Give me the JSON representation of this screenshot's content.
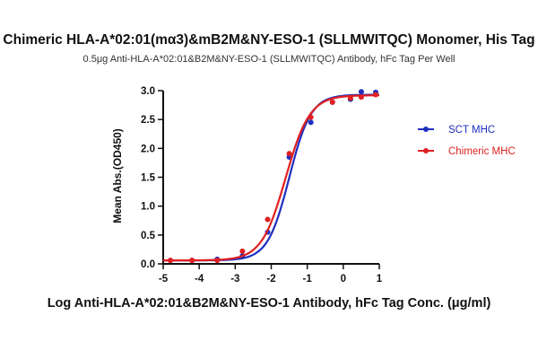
{
  "chart_data": {
    "type": "line",
    "title": "Chimeric HLA-A*02:01(mα3)&mB2M&NY-ESO-1 (SLLMWITQC) Monomer, His Tag",
    "subtitle": "0.5μg Anti-HLA-A*02:01&B2M&NY-ESO-1 (SLLMWITQC) Antibody, hFc Tag Per Well",
    "xlabel": "Log Anti-HLA-A*02:01&B2M&NY-ESO-1 Antibody, hFc Tag Conc. (μg/ml)",
    "ylabel": "Mean Abs.(OD450)",
    "xlim": [
      -5,
      1
    ],
    "ylim": [
      0,
      3.0
    ],
    "x_ticks": [
      "-5",
      "-4",
      "-3",
      "-2",
      "-1",
      "0",
      "1"
    ],
    "y_ticks": [
      "0.0",
      "0.5",
      "1.0",
      "1.5",
      "2.0",
      "2.5",
      "3.0"
    ],
    "grid": false,
    "legend_position": "right",
    "series": [
      {
        "name": "SCT MHC",
        "color": "#1f2fbf",
        "x": [
          -4.8,
          -4.2,
          -3.5,
          -2.8,
          -2.1,
          -1.5,
          -0.9,
          -0.3,
          0.2,
          0.5,
          0.9
        ],
        "y": [
          0.06,
          0.06,
          0.08,
          0.14,
          0.55,
          1.85,
          2.45,
          2.8,
          2.85,
          2.98,
          2.97
        ],
        "fit": {
          "bottom": 0.06,
          "top": 2.93,
          "logEC50": -1.5,
          "hill": 1.45
        }
      },
      {
        "name": "Chimeric MHC",
        "color": "#e02020",
        "x": [
          -4.8,
          -4.2,
          -3.5,
          -2.8,
          -2.1,
          -1.5,
          -0.9,
          -0.3,
          0.2,
          0.5,
          0.9
        ],
        "y": [
          0.06,
          0.06,
          0.06,
          0.22,
          0.77,
          1.91,
          2.54,
          2.8,
          2.87,
          2.89,
          2.93
        ],
        "fit": {
          "bottom": 0.06,
          "top": 2.92,
          "logEC50": -1.6,
          "hill": 1.3
        }
      }
    ]
  }
}
